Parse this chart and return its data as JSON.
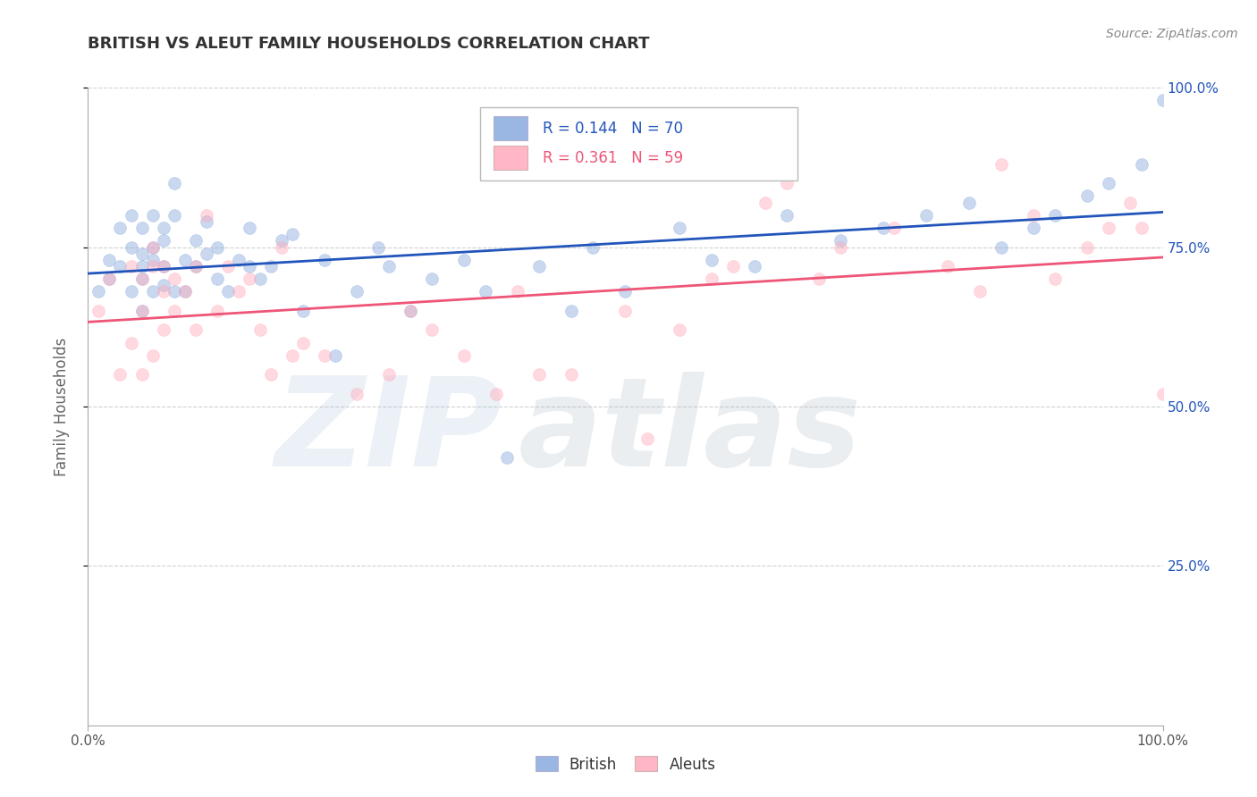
{
  "title": "BRITISH VS ALEUT FAMILY HOUSEHOLDS CORRELATION CHART",
  "source_text": "Source: ZipAtlas.com",
  "ylabel": "Family Households",
  "xlim": [
    0.0,
    1.0
  ],
  "ylim": [
    0.0,
    1.0
  ],
  "watermark_zip": "ZIP",
  "watermark_atlas": "atlas",
  "british_color": "#88aadd",
  "aleut_color": "#ffaabb",
  "british_line_color": "#2255bb",
  "aleut_line_color": "#ee5577",
  "legend_british_label": "British",
  "legend_aleut_label": "Aleuts",
  "R_british": "0.144",
  "N_british": "70",
  "R_aleut": "0.361",
  "N_aleut": "59",
  "background_color": "#ffffff",
  "grid_color": "#cccccc",
  "marker_size": 100,
  "marker_alpha": 0.45,
  "title_fontsize": 13,
  "tick_fontsize": 11,
  "british_x": [
    0.01,
    0.02,
    0.02,
    0.03,
    0.03,
    0.04,
    0.04,
    0.04,
    0.05,
    0.05,
    0.05,
    0.05,
    0.05,
    0.06,
    0.06,
    0.06,
    0.06,
    0.07,
    0.07,
    0.07,
    0.07,
    0.08,
    0.08,
    0.08,
    0.09,
    0.09,
    0.1,
    0.1,
    0.11,
    0.11,
    0.12,
    0.12,
    0.13,
    0.14,
    0.15,
    0.15,
    0.16,
    0.17,
    0.18,
    0.19,
    0.2,
    0.22,
    0.23,
    0.25,
    0.27,
    0.28,
    0.3,
    0.32,
    0.35,
    0.37,
    0.39,
    0.42,
    0.45,
    0.47,
    0.5,
    0.55,
    0.58,
    0.62,
    0.65,
    0.7,
    0.74,
    0.78,
    0.82,
    0.85,
    0.88,
    0.9,
    0.93,
    0.95,
    0.98,
    1.0
  ],
  "british_y": [
    0.68,
    0.73,
    0.7,
    0.78,
    0.72,
    0.75,
    0.68,
    0.8,
    0.74,
    0.7,
    0.65,
    0.78,
    0.72,
    0.8,
    0.73,
    0.68,
    0.75,
    0.76,
    0.72,
    0.69,
    0.78,
    0.8,
    0.68,
    0.85,
    0.73,
    0.68,
    0.76,
    0.72,
    0.74,
    0.79,
    0.7,
    0.75,
    0.68,
    0.73,
    0.72,
    0.78,
    0.7,
    0.72,
    0.76,
    0.77,
    0.65,
    0.73,
    0.58,
    0.68,
    0.75,
    0.72,
    0.65,
    0.7,
    0.73,
    0.68,
    0.42,
    0.72,
    0.65,
    0.75,
    0.68,
    0.78,
    0.73,
    0.72,
    0.8,
    0.76,
    0.78,
    0.8,
    0.82,
    0.75,
    0.78,
    0.8,
    0.83,
    0.85,
    0.88,
    0.98
  ],
  "aleut_x": [
    0.01,
    0.02,
    0.03,
    0.04,
    0.04,
    0.05,
    0.05,
    0.05,
    0.06,
    0.06,
    0.06,
    0.07,
    0.07,
    0.07,
    0.08,
    0.08,
    0.09,
    0.1,
    0.1,
    0.11,
    0.12,
    0.13,
    0.14,
    0.15,
    0.16,
    0.17,
    0.18,
    0.19,
    0.2,
    0.22,
    0.25,
    0.28,
    0.3,
    0.32,
    0.35,
    0.38,
    0.4,
    0.42,
    0.45,
    0.5,
    0.52,
    0.55,
    0.58,
    0.6,
    0.63,
    0.65,
    0.68,
    0.7,
    0.75,
    0.8,
    0.83,
    0.85,
    0.88,
    0.9,
    0.93,
    0.95,
    0.97,
    0.98,
    1.0
  ],
  "aleut_y": [
    0.65,
    0.7,
    0.55,
    0.72,
    0.6,
    0.65,
    0.55,
    0.7,
    0.75,
    0.58,
    0.72,
    0.68,
    0.62,
    0.72,
    0.65,
    0.7,
    0.68,
    0.72,
    0.62,
    0.8,
    0.65,
    0.72,
    0.68,
    0.7,
    0.62,
    0.55,
    0.75,
    0.58,
    0.6,
    0.58,
    0.52,
    0.55,
    0.65,
    0.62,
    0.58,
    0.52,
    0.68,
    0.55,
    0.55,
    0.65,
    0.45,
    0.62,
    0.7,
    0.72,
    0.82,
    0.85,
    0.7,
    0.75,
    0.78,
    0.72,
    0.68,
    0.88,
    0.8,
    0.7,
    0.75,
    0.78,
    0.82,
    0.78,
    0.52
  ]
}
